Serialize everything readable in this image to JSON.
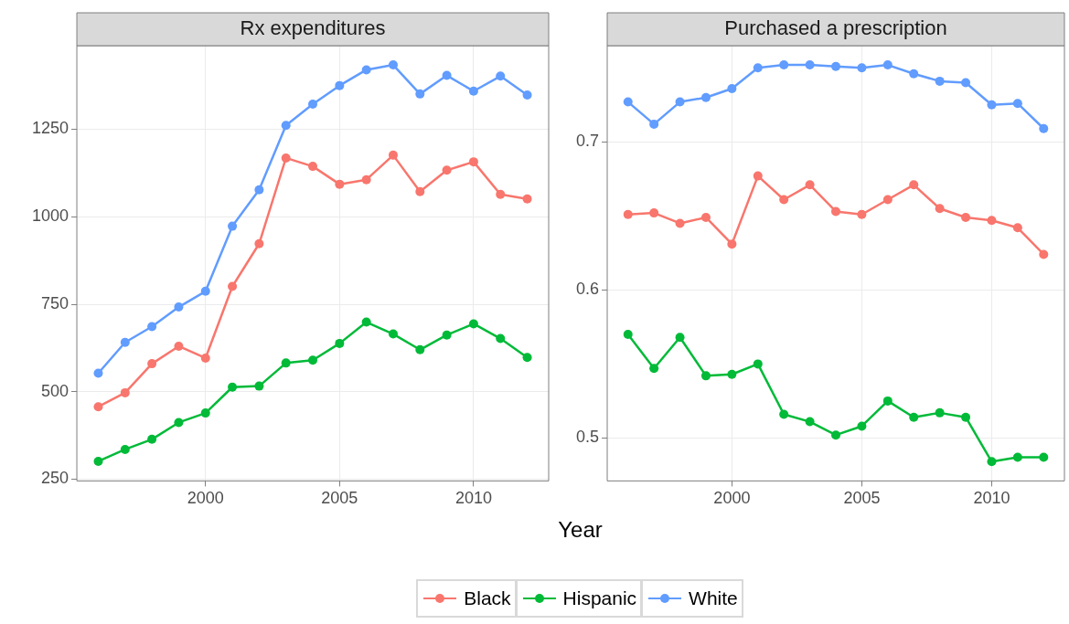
{
  "chart_data": [
    {
      "type": "line",
      "title": "Rx expenditures",
      "xlabel": "Year",
      "x": [
        1996,
        1997,
        1998,
        1999,
        2000,
        2001,
        2002,
        2003,
        2004,
        2005,
        2006,
        2007,
        2008,
        2009,
        2010,
        2011,
        2012
      ],
      "series": [
        {
          "name": "Black",
          "color": "#f8766d",
          "values": [
            457,
            497,
            580,
            630,
            596,
            801,
            923,
            1168,
            1144,
            1093,
            1106,
            1176,
            1072,
            1133,
            1157,
            1064,
            1051
          ]
        },
        {
          "name": "Hispanic",
          "color": "#00ba38",
          "values": [
            301,
            335,
            364,
            412,
            439,
            513,
            516,
            582,
            590,
            638,
            699,
            665,
            620,
            662,
            694,
            652,
            598
          ]
        },
        {
          "name": "White",
          "color": "#619cff",
          "values": [
            553,
            641,
            686,
            742,
            787,
            973,
            1077,
            1261,
            1322,
            1375,
            1420,
            1434,
            1351,
            1404,
            1359,
            1402,
            1348
          ]
        }
      ],
      "xlim": [
        1995.2,
        2012.8
      ],
      "xticks": [
        2000,
        2005,
        2010
      ],
      "ylim": [
        245,
        1489
      ],
      "yticks": [
        250,
        500,
        750,
        1000,
        1250
      ],
      "grid": true,
      "legend": "bottom",
      "marker": "circle",
      "line_style": "solid"
    },
    {
      "type": "line",
      "title": "Purchased a prescription",
      "x": [
        1996,
        1997,
        1998,
        1999,
        2000,
        2001,
        2002,
        2003,
        2004,
        2005,
        2006,
        2007,
        2008,
        2009,
        2010,
        2011,
        2012
      ],
      "series": [
        {
          "color": "#f8766d",
          "values": [
            0.651,
            0.652,
            0.645,
            0.649,
            0.631,
            0.677,
            0.661,
            0.671,
            0.653,
            0.651,
            0.661,
            0.671,
            0.655,
            0.649,
            0.647,
            0.642,
            0.624
          ]
        },
        {
          "color": "#00ba38",
          "values": [
            0.57,
            0.547,
            0.568,
            0.542,
            0.543,
            0.55,
            0.516,
            0.511,
            0.502,
            0.508,
            0.525,
            0.514,
            0.517,
            0.514,
            0.484,
            0.487,
            0.487
          ]
        },
        {
          "color": "#619cff",
          "values": [
            0.727,
            0.712,
            0.727,
            0.73,
            0.736,
            0.75,
            0.752,
            0.752,
            0.751,
            0.75,
            0.752,
            0.746,
            0.741,
            0.74,
            0.725,
            0.726,
            0.709
          ]
        }
      ],
      "xlim": [
        1995.2,
        2012.8
      ],
      "xticks": [
        2000,
        2005,
        2010
      ],
      "ylim": [
        0.471,
        0.765
      ],
      "yticks": [
        0.5,
        0.6,
        0.7
      ],
      "grid": true,
      "marker": "circle",
      "line_style": "solid"
    }
  ]
}
